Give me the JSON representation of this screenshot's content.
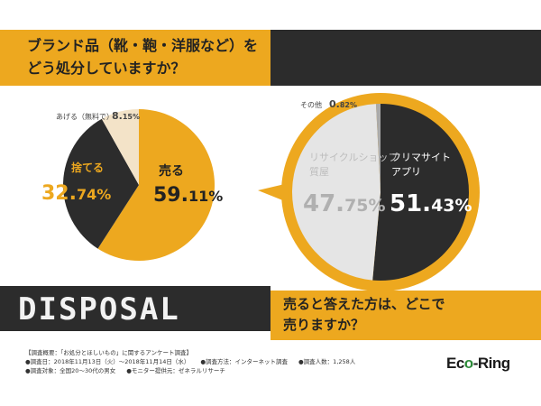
{
  "header": {
    "question_line1": "ブランド品（靴・鞄・洋服など）を",
    "question_line2": "どう処分していますか？"
  },
  "section": {
    "disposal_label": "DISPOSAL",
    "question_line1": "売ると答えた方は、どこで",
    "question_line2": "売りますか？"
  },
  "chart_data": [
    {
      "type": "pie",
      "title": "ブランド品（靴・鞄・洋服など）をどう処分していますか？",
      "slices": [
        {
          "label": "売る",
          "value": 59.11,
          "display_int": "59.",
          "display_dec": "11%",
          "color": "#eda81f"
        },
        {
          "label": "捨てる",
          "value": 32.74,
          "display_int": "32.",
          "display_dec": "74%",
          "color": "#2c2c2c"
        },
        {
          "label": "あげる（無料で）",
          "value": 8.15,
          "display_int": "8.",
          "display_dec": "15%",
          "color": "#f3e3c8"
        }
      ]
    },
    {
      "type": "pie",
      "title": "売ると答えた方は、どこで売りますか？",
      "slices": [
        {
          "label": "フリマサイトアプリ",
          "label_line1": "フリマサイト",
          "label_line2": "アプリ",
          "value": 51.43,
          "display_int": "51.",
          "display_dec": "43%",
          "color": "#2c2c2c"
        },
        {
          "label": "リサイクルショップ質屋",
          "label_line1": "リサイクルショップ",
          "label_line2": "質屋",
          "value": 47.75,
          "display_int": "47.",
          "display_dec": "75%",
          "color": "#e5e5e5"
        },
        {
          "label": "その他",
          "value": 0.82,
          "display_int": "0.",
          "display_dec": "82%",
          "color": "#aaaaaa"
        }
      ]
    }
  ],
  "footer": {
    "title": "【調査概要：「お処分とほしいもの」に関するアンケート調査】",
    "period": "●調査日：2018年11月13日（火）〜2018年11月14日（水）",
    "method": "●調査方法：インターネット調査",
    "count": "●調査人数：1,258人",
    "target": "●調査対象：全国20〜30代の男女",
    "monitor": "●モニター提供元：ゼネラルリサーチ"
  },
  "logo": {
    "part1": "Ec",
    "part2": "o",
    "part3": "-Ring"
  }
}
